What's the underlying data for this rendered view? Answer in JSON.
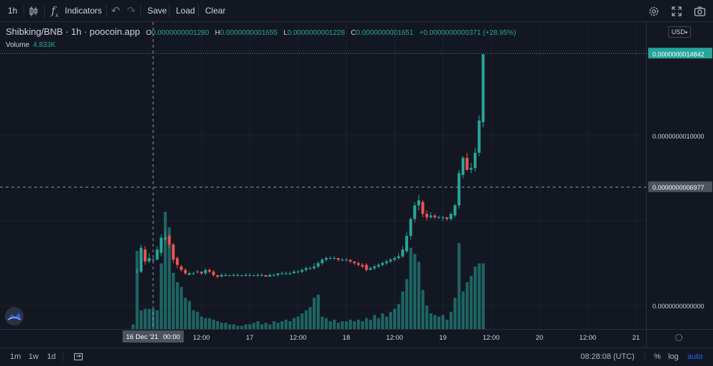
{
  "toolbar": {
    "interval": "1h",
    "indicators_label": "Indicators",
    "save_label": "Save",
    "load_label": "Load",
    "clear_label": "Clear",
    "icons": [
      "candles-icon",
      "function-icon",
      "undo-icon",
      "redo-icon",
      "gear-icon",
      "fullscreen-icon",
      "camera-icon"
    ]
  },
  "legend": {
    "symbol": "Shibking/BNB · 1h · poocoin.app",
    "o_label": "O",
    "o_value": "0.0000000001280",
    "h_label": "H",
    "h_value": "0.0000000001655",
    "l_label": "L",
    "l_value": "0.0000000001228",
    "c_label": "C",
    "c_value": "0.0000000001651",
    "change": "+0.0000000000371 (+28.95%)",
    "volume_label": "Volume",
    "volume_value": "4.833K"
  },
  "currency": "USD",
  "bottom": {
    "ranges": [
      "1m",
      "1w",
      "1d"
    ],
    "time": "08:28:08 (UTC)",
    "percent": "%",
    "log": "log",
    "auto": "auto"
  },
  "colors": {
    "up": "#26a69a",
    "down": "#ef5350",
    "bg": "#131722",
    "grid": "#1e222d",
    "accent": "#2962ff"
  },
  "chart_data": {
    "type": "candlestick",
    "price_labels": [
      {
        "price": 1.4842,
        "text": "0.0000000014842",
        "highlight": "last"
      },
      {
        "price": 1.0,
        "text": "0.0000000010000"
      },
      {
        "price": 0.6977,
        "text": "0.0000000006977",
        "highlight": "crosshair"
      },
      {
        "price": 0.0,
        "text": "0.0000000000000"
      }
    ],
    "ylim": [
      0,
      1.6
    ],
    "time_ticks": [
      {
        "hour": 12,
        "text": "12:00"
      },
      {
        "hour": 24,
        "text": "17"
      },
      {
        "hour": 36,
        "text": "12:00"
      },
      {
        "hour": 48,
        "text": "18"
      },
      {
        "hour": 60,
        "text": "12:00"
      },
      {
        "hour": 72,
        "text": "19"
      },
      {
        "hour": 84,
        "text": "12:00"
      },
      {
        "hour": 96,
        "text": "20"
      },
      {
        "hour": 108,
        "text": "12:00"
      },
      {
        "hour": 120,
        "text": "21"
      }
    ],
    "crosshair_date": "16 Dec '21",
    "crosshair_time": "00:00",
    "hour_range": [
      -15,
      122
    ],
    "candles": [
      [
        -4,
        0.2,
        0.2,
        0.19,
        0.22
      ],
      [
        -3,
        0.2,
        0.34,
        0.19,
        0.36
      ],
      [
        -2,
        0.33,
        0.26,
        0.24,
        0.35
      ],
      [
        -1,
        0.26,
        0.28,
        0.25,
        0.31
      ],
      [
        0,
        0.27,
        0.27,
        0.26,
        0.29
      ],
      [
        1,
        0.27,
        0.33,
        0.27,
        0.35
      ],
      [
        2,
        0.31,
        0.4,
        0.29,
        0.42
      ],
      [
        3,
        0.39,
        0.4,
        0.38,
        0.44
      ],
      [
        4,
        0.41,
        0.36,
        0.34,
        0.42
      ],
      [
        5,
        0.36,
        0.27,
        0.25,
        0.37
      ],
      [
        6,
        0.28,
        0.24,
        0.22,
        0.29
      ],
      [
        7,
        0.23,
        0.21,
        0.2,
        0.24
      ],
      [
        8,
        0.21,
        0.19,
        0.18,
        0.22
      ],
      [
        9,
        0.18,
        0.19,
        0.18,
        0.2
      ],
      [
        10,
        0.19,
        0.19,
        0.18,
        0.2
      ],
      [
        11,
        0.2,
        0.2,
        0.19,
        0.21
      ],
      [
        12,
        0.2,
        0.19,
        0.18,
        0.2
      ],
      [
        13,
        0.19,
        0.21,
        0.18,
        0.22
      ],
      [
        14,
        0.21,
        0.2,
        0.19,
        0.22
      ],
      [
        15,
        0.2,
        0.18,
        0.17,
        0.21
      ],
      [
        16,
        0.18,
        0.17,
        0.16,
        0.18
      ],
      [
        17,
        0.17,
        0.18,
        0.17,
        0.19
      ],
      [
        18,
        0.18,
        0.18,
        0.17,
        0.19
      ],
      [
        19,
        0.18,
        0.18,
        0.17,
        0.18
      ],
      [
        20,
        0.18,
        0.18,
        0.17,
        0.19
      ],
      [
        21,
        0.18,
        0.18,
        0.17,
        0.19
      ],
      [
        22,
        0.18,
        0.18,
        0.17,
        0.18
      ],
      [
        23,
        0.18,
        0.18,
        0.17,
        0.19
      ],
      [
        24,
        0.18,
        0.18,
        0.17,
        0.19
      ],
      [
        25,
        0.18,
        0.18,
        0.17,
        0.18
      ],
      [
        26,
        0.18,
        0.18,
        0.17,
        0.19
      ],
      [
        27,
        0.18,
        0.18,
        0.17,
        0.19
      ],
      [
        28,
        0.18,
        0.17,
        0.17,
        0.18
      ],
      [
        29,
        0.17,
        0.18,
        0.17,
        0.19
      ],
      [
        30,
        0.18,
        0.18,
        0.17,
        0.19
      ],
      [
        31,
        0.18,
        0.19,
        0.17,
        0.19
      ],
      [
        32,
        0.19,
        0.19,
        0.18,
        0.2
      ],
      [
        33,
        0.19,
        0.19,
        0.18,
        0.2
      ],
      [
        34,
        0.19,
        0.19,
        0.18,
        0.2
      ],
      [
        35,
        0.19,
        0.2,
        0.19,
        0.21
      ],
      [
        36,
        0.2,
        0.2,
        0.19,
        0.21
      ],
      [
        37,
        0.2,
        0.21,
        0.19,
        0.22
      ],
      [
        38,
        0.21,
        0.22,
        0.2,
        0.23
      ],
      [
        39,
        0.22,
        0.22,
        0.21,
        0.23
      ],
      [
        40,
        0.22,
        0.23,
        0.21,
        0.25
      ],
      [
        41,
        0.23,
        0.25,
        0.22,
        0.26
      ],
      [
        42,
        0.25,
        0.27,
        0.24,
        0.28
      ],
      [
        43,
        0.27,
        0.28,
        0.26,
        0.29
      ],
      [
        44,
        0.28,
        0.28,
        0.27,
        0.29
      ],
      [
        45,
        0.28,
        0.28,
        0.27,
        0.29
      ],
      [
        46,
        0.28,
        0.27,
        0.26,
        0.28
      ],
      [
        47,
        0.27,
        0.27,
        0.26,
        0.28
      ],
      [
        48,
        0.27,
        0.27,
        0.26,
        0.28
      ],
      [
        49,
        0.27,
        0.26,
        0.25,
        0.27
      ],
      [
        50,
        0.26,
        0.25,
        0.24,
        0.26
      ],
      [
        51,
        0.25,
        0.24,
        0.23,
        0.26
      ],
      [
        52,
        0.24,
        0.23,
        0.22,
        0.25
      ],
      [
        53,
        0.24,
        0.21,
        0.2,
        0.25
      ],
      [
        54,
        0.21,
        0.22,
        0.21,
        0.23
      ],
      [
        55,
        0.22,
        0.23,
        0.21,
        0.24
      ],
      [
        56,
        0.23,
        0.24,
        0.22,
        0.25
      ],
      [
        57,
        0.24,
        0.25,
        0.23,
        0.26
      ],
      [
        58,
        0.25,
        0.26,
        0.24,
        0.27
      ],
      [
        59,
        0.26,
        0.27,
        0.25,
        0.28
      ],
      [
        60,
        0.27,
        0.28,
        0.26,
        0.29
      ],
      [
        61,
        0.28,
        0.29,
        0.27,
        0.31
      ],
      [
        62,
        0.29,
        0.33,
        0.28,
        0.35
      ],
      [
        63,
        0.32,
        0.41,
        0.31,
        0.43
      ],
      [
        64,
        0.41,
        0.51,
        0.39,
        0.52
      ],
      [
        65,
        0.51,
        0.59,
        0.49,
        0.61
      ],
      [
        66,
        0.59,
        0.62,
        0.56,
        0.65
      ],
      [
        67,
        0.61,
        0.54,
        0.52,
        0.62
      ],
      [
        68,
        0.54,
        0.52,
        0.5,
        0.56
      ],
      [
        69,
        0.52,
        0.53,
        0.51,
        0.55
      ],
      [
        70,
        0.53,
        0.52,
        0.51,
        0.54
      ],
      [
        71,
        0.52,
        0.52,
        0.51,
        0.53
      ],
      [
        72,
        0.52,
        0.52,
        0.5,
        0.53
      ],
      [
        73,
        0.52,
        0.51,
        0.5,
        0.52
      ],
      [
        74,
        0.51,
        0.54,
        0.5,
        0.55
      ],
      [
        75,
        0.53,
        0.59,
        0.52,
        0.6
      ],
      [
        76,
        0.59,
        0.78,
        0.57,
        0.8
      ],
      [
        77,
        0.77,
        0.87,
        0.75,
        0.88
      ],
      [
        78,
        0.87,
        0.8,
        0.79,
        0.9
      ],
      [
        79,
        0.8,
        0.81,
        0.78,
        0.84
      ],
      [
        80,
        0.81,
        0.9,
        0.79,
        0.93
      ],
      [
        81,
        0.9,
        1.09,
        0.88,
        1.12
      ],
      [
        82,
        1.08,
        1.48,
        1.05,
        1.48
      ]
    ],
    "volumes": [
      [
        -5,
        0.03
      ],
      [
        -4,
        0.5
      ],
      [
        -3,
        0.12
      ],
      [
        -2,
        0.13
      ],
      [
        -1,
        0.13
      ],
      [
        0,
        0.13
      ],
      [
        1,
        0.12
      ],
      [
        2,
        0.42
      ],
      [
        3,
        0.75
      ],
      [
        4,
        0.65
      ],
      [
        5,
        0.36
      ],
      [
        6,
        0.3
      ],
      [
        7,
        0.27
      ],
      [
        8,
        0.2
      ],
      [
        9,
        0.18
      ],
      [
        10,
        0.12
      ],
      [
        11,
        0.11
      ],
      [
        12,
        0.08
      ],
      [
        13,
        0.07
      ],
      [
        14,
        0.07
      ],
      [
        15,
        0.06
      ],
      [
        16,
        0.05
      ],
      [
        17,
        0.04
      ],
      [
        18,
        0.04
      ],
      [
        19,
        0.03
      ],
      [
        20,
        0.03
      ],
      [
        21,
        0.02
      ],
      [
        22,
        0.02
      ],
      [
        23,
        0.03
      ],
      [
        24,
        0.03
      ],
      [
        25,
        0.04
      ],
      [
        26,
        0.05
      ],
      [
        27,
        0.03
      ],
      [
        28,
        0.04
      ],
      [
        29,
        0.03
      ],
      [
        30,
        0.05
      ],
      [
        31,
        0.04
      ],
      [
        32,
        0.05
      ],
      [
        33,
        0.06
      ],
      [
        34,
        0.05
      ],
      [
        35,
        0.07
      ],
      [
        36,
        0.08
      ],
      [
        37,
        0.1
      ],
      [
        38,
        0.12
      ],
      [
        39,
        0.14
      ],
      [
        40,
        0.2
      ],
      [
        41,
        0.22
      ],
      [
        42,
        0.08
      ],
      [
        43,
        0.07
      ],
      [
        44,
        0.05
      ],
      [
        45,
        0.06
      ],
      [
        46,
        0.04
      ],
      [
        47,
        0.05
      ],
      [
        48,
        0.05
      ],
      [
        49,
        0.06
      ],
      [
        50,
        0.05
      ],
      [
        51,
        0.06
      ],
      [
        52,
        0.05
      ],
      [
        53,
        0.07
      ],
      [
        54,
        0.06
      ],
      [
        55,
        0.09
      ],
      [
        56,
        0.07
      ],
      [
        57,
        0.1
      ],
      [
        58,
        0.08
      ],
      [
        59,
        0.11
      ],
      [
        60,
        0.13
      ],
      [
        61,
        0.16
      ],
      [
        62,
        0.24
      ],
      [
        63,
        0.32
      ],
      [
        64,
        0.52
      ],
      [
        65,
        0.48
      ],
      [
        66,
        0.43
      ],
      [
        67,
        0.25
      ],
      [
        68,
        0.15
      ],
      [
        69,
        0.1
      ],
      [
        70,
        0.09
      ],
      [
        71,
        0.08
      ],
      [
        72,
        0.09
      ],
      [
        73,
        0.06
      ],
      [
        74,
        0.11
      ],
      [
        75,
        0.2
      ],
      [
        76,
        0.55
      ],
      [
        77,
        0.24
      ],
      [
        78,
        0.3
      ],
      [
        79,
        0.34
      ],
      [
        80,
        0.4
      ],
      [
        81,
        0.42
      ],
      [
        82,
        0.42
      ]
    ]
  }
}
